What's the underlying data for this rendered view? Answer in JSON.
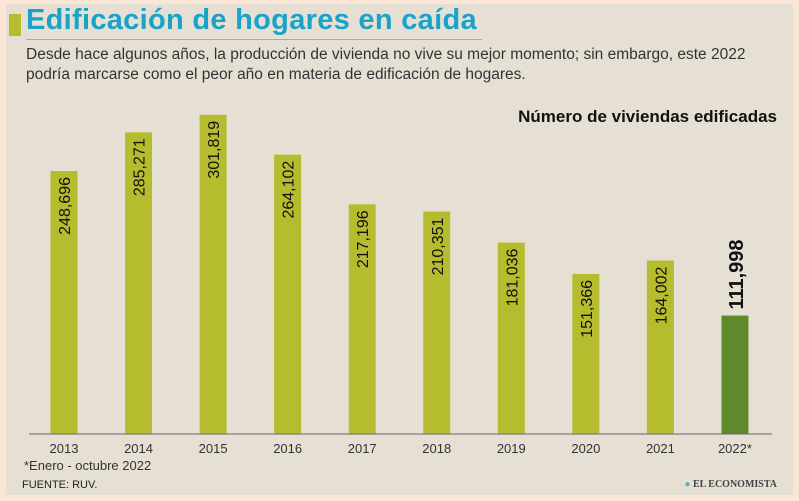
{
  "header": {
    "title": "Edificación de hogares en caída",
    "subtitle": "Desde hace algunos años, la producción de vivienda no vive su mejor momento; sin embargo, este 2022 podría marcarse como el peor año en materia de edificación de hogares."
  },
  "chart_data": {
    "type": "bar",
    "title": "Número de viviendas edificadas",
    "categories": [
      "2013",
      "2014",
      "2015",
      "2016",
      "2017",
      "2018",
      "2019",
      "2020",
      "2021",
      "2022*"
    ],
    "values": [
      248696,
      285271,
      301819,
      264102,
      217196,
      210351,
      181036,
      151366,
      164002,
      111998
    ],
    "labels": [
      "248,696",
      "285,271",
      "301,819",
      "264,102",
      "217,196",
      "210,351",
      "181,036",
      "151,366",
      "164,002",
      "111,998"
    ],
    "ylim": [
      0,
      320000
    ],
    "grid": false,
    "colors": {
      "bar": "#b5bd2e",
      "highlight": "#5e8a2c"
    }
  },
  "footer": {
    "note": "*Enero - octubre 2022",
    "source": "FUENTE: RUV.",
    "logo": "EL ECONOMISTA"
  }
}
